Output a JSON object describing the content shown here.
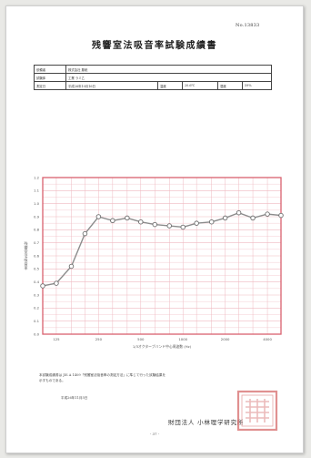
{
  "header": {
    "doc_number": "No.13833",
    "title": "残響室法吸音率試験成績書"
  },
  "info_table": [
    [
      "依頼者",
      "株式会社 藤紙",
      "",
      "",
      "",
      ""
    ],
    [
      "試験体",
      "工業 ラミ乙",
      "",
      "",
      "",
      ""
    ],
    [
      "測定日",
      "平成26年10月16日",
      "温度",
      "20.6℃",
      "湿度",
      "59%"
    ]
  ],
  "chart_data": {
    "type": "line",
    "title": "",
    "xlabel": "1/3オクターブバンド中心周波数 (Hz)",
    "ylabel": "残響室法吸音率",
    "x_scale": "log",
    "xlim": [
      100,
      5000
    ],
    "ylim": [
      0.0,
      1.2
    ],
    "ytick_values": [
      0.0,
      0.1,
      0.2,
      0.3,
      0.4,
      0.5,
      0.6,
      0.7,
      0.8,
      0.9,
      1.0,
      1.1,
      1.2
    ],
    "ytick_labels": [
      "0.0",
      "0.1",
      "0.2",
      "0.3",
      "0.4",
      "0.5",
      "0.6",
      "0.7",
      "0.8",
      "0.9",
      "1.0",
      "1.1",
      "1.2"
    ],
    "xtick_values": [
      125,
      250,
      500,
      1000,
      2000,
      4000
    ],
    "xtick_labels": [
      "125",
      "250",
      "500",
      "1000",
      "2000",
      "4000"
    ],
    "grid": true,
    "series": [
      {
        "x": [
          100,
          125,
          160,
          200,
          250,
          315,
          400,
          500,
          630,
          800,
          1000,
          1250,
          1600,
          2000,
          2500,
          3150,
          4000,
          5000
        ],
        "values": [
          0.37,
          0.39,
          0.52,
          0.77,
          0.9,
          0.87,
          0.89,
          0.86,
          0.84,
          0.83,
          0.82,
          0.85,
          0.86,
          0.89,
          0.93,
          0.89,
          0.92,
          0.91
        ]
      }
    ],
    "colors": {
      "axes": "#d9606e",
      "grid": "#efb9c0",
      "line": "#8c8c8c",
      "marker_edge": "#6e6e6e",
      "text": "#555555"
    }
  },
  "note_lines": [
    "本試験成績書は JIS A 1409「残響室法吸音率の測定方法」に準じて行った試験結果を",
    "示すものである。"
  ],
  "issue_date": "平成26年11月5日",
  "issuer": "財団法人 小林理学研究所"
}
